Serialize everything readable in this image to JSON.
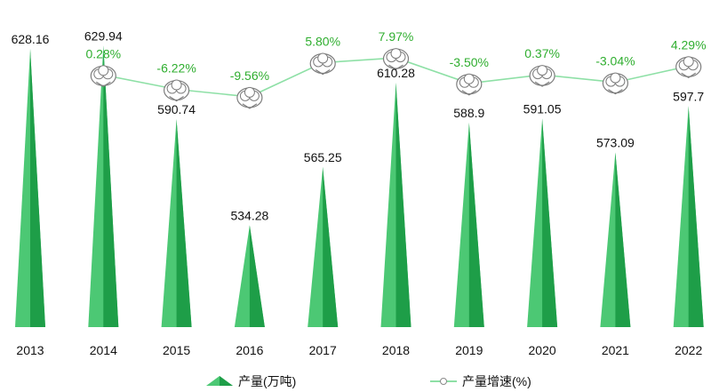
{
  "chart_data": {
    "type": "bar",
    "categories": [
      "2013",
      "2014",
      "2015",
      "2016",
      "2017",
      "2018",
      "2019",
      "2020",
      "2021",
      "2022"
    ],
    "series": [
      {
        "name": "产量(万吨)",
        "kind": "bar",
        "values": [
          628.16,
          629.94,
          590.74,
          534.28,
          565.25,
          610.28,
          588.9,
          591.05,
          573.09,
          597.7
        ],
        "value_labels": [
          "628.16",
          "629.94",
          "590.74",
          "534.28",
          "565.25",
          "610.28",
          "588.9",
          "591.05",
          "573.09",
          "597.7"
        ]
      },
      {
        "name": "产量增速(%)",
        "kind": "line",
        "values": [
          null,
          0.28,
          -6.22,
          -9.56,
          5.8,
          7.97,
          -3.5,
          0.37,
          -3.04,
          4.29
        ],
        "value_labels": [
          "",
          "0.28%",
          "-6.22%",
          "-9.56%",
          "5.80%",
          "7.97%",
          "-3.50%",
          "0.37%",
          "-3.04%",
          "4.29%"
        ]
      }
    ],
    "title": "",
    "xlabel": "",
    "ylabel": "",
    "ylim": [
      480,
      640
    ],
    "growth_range": [
      -20,
      12
    ],
    "grid": false,
    "legend_position": "bottom-center",
    "colors": {
      "bar_light": "#4cc874",
      "bar_dark": "#1e9e48",
      "line": "#8ee0a6",
      "growth_label": "#2fae2f",
      "value_label": "#111111",
      "marker_outline": "#7d7d7d"
    }
  }
}
